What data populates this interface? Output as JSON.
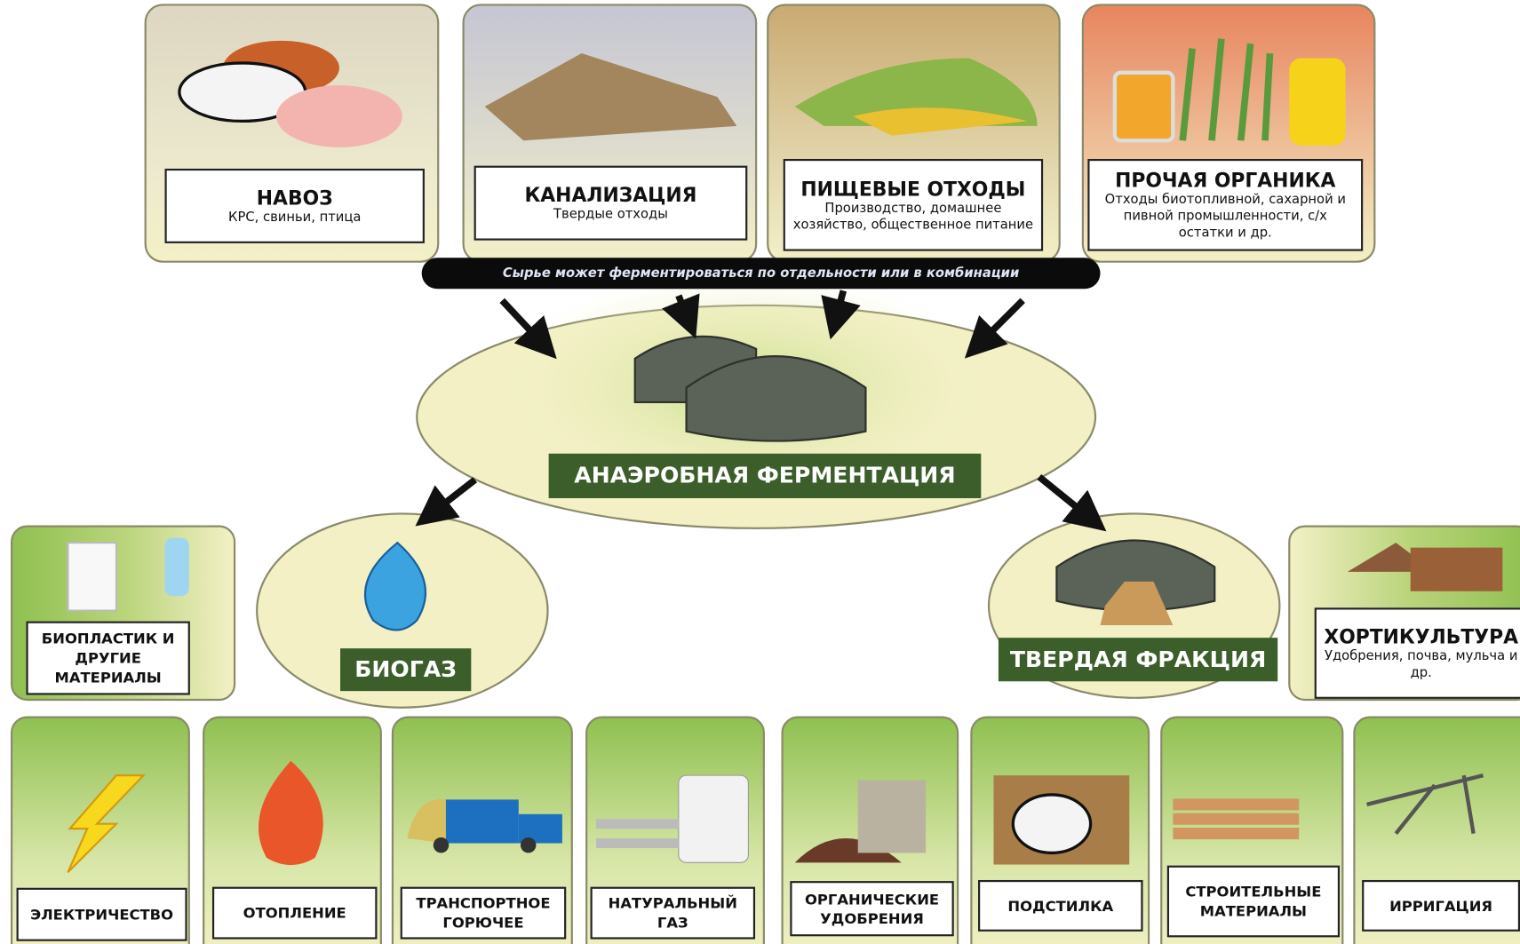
{
  "inputs": [
    {
      "title": "НАВОЗ",
      "subtitle": "КРС, свиньи, птица"
    },
    {
      "title": "КАНАЛИЗАЦИЯ",
      "subtitle": "Твердые отходы"
    },
    {
      "title": "ПИЩЕВЫЕ ОТХОДЫ",
      "subtitle": "Производство, домашнее хозяйство, общественное питание"
    },
    {
      "title": "ПРОЧАЯ ОРГАНИКА",
      "subtitle": "Отходы биотопливной, сахарной и пивной промышленности, с/х остатки  и др."
    }
  ],
  "note": "Сырье может ферментироваться по отдельности или в комбинации",
  "process": "АНАЭРОБНАЯ ФЕРМЕНТАЦИЯ",
  "biogas": {
    "title": "БИОГАЗ",
    "side": "БИОПЛАСТИК И ДРУГИЕ МАТЕРИАЛЫ",
    "uses": [
      "ЭЛЕКТРИЧЕСТВО",
      "ОТОПЛЕНИЕ",
      "ТРАНСПОРТНОЕ ГОРЮЧЕЕ",
      "НАТУРАЛЬНЫЙ ГАЗ"
    ]
  },
  "solid": {
    "title": "ТВЕРДАЯ ФРАКЦИЯ",
    "side": {
      "title": "ХОРТИКУЛЬТУРА",
      "subtitle": "Удобрения, почва, мульча и др."
    },
    "uses": [
      "ОРГАНИЧЕСКИЕ УДОБРЕНИЯ",
      "ПОДСТИЛКА",
      "СТРОИТЕЛЬНЫЕ МАТЕРИАЛЫ",
      "ИРРИГАЦИЯ"
    ]
  }
}
